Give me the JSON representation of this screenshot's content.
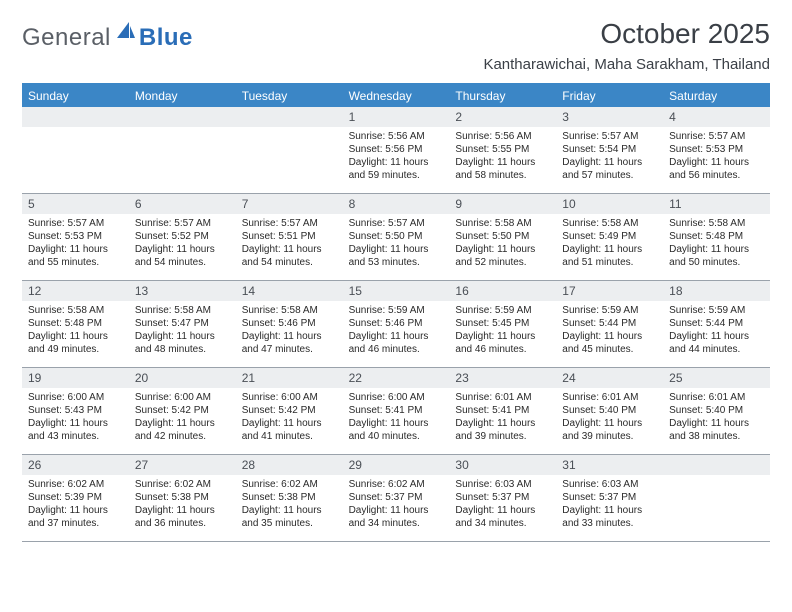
{
  "logo": {
    "word1": "General",
    "word2": "Blue"
  },
  "title": "October 2025",
  "location": "Kantharawichai, Maha Sarakham, Thailand",
  "colors": {
    "header_blue": "#3b86c6",
    "row_alt": "#eceef0",
    "divider": "#9aa2ab",
    "text": "#2a2a2a",
    "logo_blue": "#2a6db7",
    "background": "#ffffff"
  },
  "typography": {
    "month_title_fontsize": 28,
    "location_fontsize": 15,
    "dow_fontsize": 12,
    "daynum_fontsize": 12,
    "body_fontsize": 10
  },
  "dayNames": [
    "Sunday",
    "Monday",
    "Tuesday",
    "Wednesday",
    "Thursday",
    "Friday",
    "Saturday"
  ],
  "weeks": [
    [
      {
        "n": "",
        "sr": "",
        "ss": "",
        "dl": ""
      },
      {
        "n": "",
        "sr": "",
        "ss": "",
        "dl": ""
      },
      {
        "n": "",
        "sr": "",
        "ss": "",
        "dl": ""
      },
      {
        "n": "1",
        "sr": "Sunrise: 5:56 AM",
        "ss": "Sunset: 5:56 PM",
        "dl": "Daylight: 11 hours and 59 minutes."
      },
      {
        "n": "2",
        "sr": "Sunrise: 5:56 AM",
        "ss": "Sunset: 5:55 PM",
        "dl": "Daylight: 11 hours and 58 minutes."
      },
      {
        "n": "3",
        "sr": "Sunrise: 5:57 AM",
        "ss": "Sunset: 5:54 PM",
        "dl": "Daylight: 11 hours and 57 minutes."
      },
      {
        "n": "4",
        "sr": "Sunrise: 5:57 AM",
        "ss": "Sunset: 5:53 PM",
        "dl": "Daylight: 11 hours and 56 minutes."
      }
    ],
    [
      {
        "n": "5",
        "sr": "Sunrise: 5:57 AM",
        "ss": "Sunset: 5:53 PM",
        "dl": "Daylight: 11 hours and 55 minutes."
      },
      {
        "n": "6",
        "sr": "Sunrise: 5:57 AM",
        "ss": "Sunset: 5:52 PM",
        "dl": "Daylight: 11 hours and 54 minutes."
      },
      {
        "n": "7",
        "sr": "Sunrise: 5:57 AM",
        "ss": "Sunset: 5:51 PM",
        "dl": "Daylight: 11 hours and 54 minutes."
      },
      {
        "n": "8",
        "sr": "Sunrise: 5:57 AM",
        "ss": "Sunset: 5:50 PM",
        "dl": "Daylight: 11 hours and 53 minutes."
      },
      {
        "n": "9",
        "sr": "Sunrise: 5:58 AM",
        "ss": "Sunset: 5:50 PM",
        "dl": "Daylight: 11 hours and 52 minutes."
      },
      {
        "n": "10",
        "sr": "Sunrise: 5:58 AM",
        "ss": "Sunset: 5:49 PM",
        "dl": "Daylight: 11 hours and 51 minutes."
      },
      {
        "n": "11",
        "sr": "Sunrise: 5:58 AM",
        "ss": "Sunset: 5:48 PM",
        "dl": "Daylight: 11 hours and 50 minutes."
      }
    ],
    [
      {
        "n": "12",
        "sr": "Sunrise: 5:58 AM",
        "ss": "Sunset: 5:48 PM",
        "dl": "Daylight: 11 hours and 49 minutes."
      },
      {
        "n": "13",
        "sr": "Sunrise: 5:58 AM",
        "ss": "Sunset: 5:47 PM",
        "dl": "Daylight: 11 hours and 48 minutes."
      },
      {
        "n": "14",
        "sr": "Sunrise: 5:58 AM",
        "ss": "Sunset: 5:46 PM",
        "dl": "Daylight: 11 hours and 47 minutes."
      },
      {
        "n": "15",
        "sr": "Sunrise: 5:59 AM",
        "ss": "Sunset: 5:46 PM",
        "dl": "Daylight: 11 hours and 46 minutes."
      },
      {
        "n": "16",
        "sr": "Sunrise: 5:59 AM",
        "ss": "Sunset: 5:45 PM",
        "dl": "Daylight: 11 hours and 46 minutes."
      },
      {
        "n": "17",
        "sr": "Sunrise: 5:59 AM",
        "ss": "Sunset: 5:44 PM",
        "dl": "Daylight: 11 hours and 45 minutes."
      },
      {
        "n": "18",
        "sr": "Sunrise: 5:59 AM",
        "ss": "Sunset: 5:44 PM",
        "dl": "Daylight: 11 hours and 44 minutes."
      }
    ],
    [
      {
        "n": "19",
        "sr": "Sunrise: 6:00 AM",
        "ss": "Sunset: 5:43 PM",
        "dl": "Daylight: 11 hours and 43 minutes."
      },
      {
        "n": "20",
        "sr": "Sunrise: 6:00 AM",
        "ss": "Sunset: 5:42 PM",
        "dl": "Daylight: 11 hours and 42 minutes."
      },
      {
        "n": "21",
        "sr": "Sunrise: 6:00 AM",
        "ss": "Sunset: 5:42 PM",
        "dl": "Daylight: 11 hours and 41 minutes."
      },
      {
        "n": "22",
        "sr": "Sunrise: 6:00 AM",
        "ss": "Sunset: 5:41 PM",
        "dl": "Daylight: 11 hours and 40 minutes."
      },
      {
        "n": "23",
        "sr": "Sunrise: 6:01 AM",
        "ss": "Sunset: 5:41 PM",
        "dl": "Daylight: 11 hours and 39 minutes."
      },
      {
        "n": "24",
        "sr": "Sunrise: 6:01 AM",
        "ss": "Sunset: 5:40 PM",
        "dl": "Daylight: 11 hours and 39 minutes."
      },
      {
        "n": "25",
        "sr": "Sunrise: 6:01 AM",
        "ss": "Sunset: 5:40 PM",
        "dl": "Daylight: 11 hours and 38 minutes."
      }
    ],
    [
      {
        "n": "26",
        "sr": "Sunrise: 6:02 AM",
        "ss": "Sunset: 5:39 PM",
        "dl": "Daylight: 11 hours and 37 minutes."
      },
      {
        "n": "27",
        "sr": "Sunrise: 6:02 AM",
        "ss": "Sunset: 5:38 PM",
        "dl": "Daylight: 11 hours and 36 minutes."
      },
      {
        "n": "28",
        "sr": "Sunrise: 6:02 AM",
        "ss": "Sunset: 5:38 PM",
        "dl": "Daylight: 11 hours and 35 minutes."
      },
      {
        "n": "29",
        "sr": "Sunrise: 6:02 AM",
        "ss": "Sunset: 5:37 PM",
        "dl": "Daylight: 11 hours and 34 minutes."
      },
      {
        "n": "30",
        "sr": "Sunrise: 6:03 AM",
        "ss": "Sunset: 5:37 PM",
        "dl": "Daylight: 11 hours and 34 minutes."
      },
      {
        "n": "31",
        "sr": "Sunrise: 6:03 AM",
        "ss": "Sunset: 5:37 PM",
        "dl": "Daylight: 11 hours and 33 minutes."
      },
      {
        "n": "",
        "sr": "",
        "ss": "",
        "dl": ""
      }
    ]
  ]
}
